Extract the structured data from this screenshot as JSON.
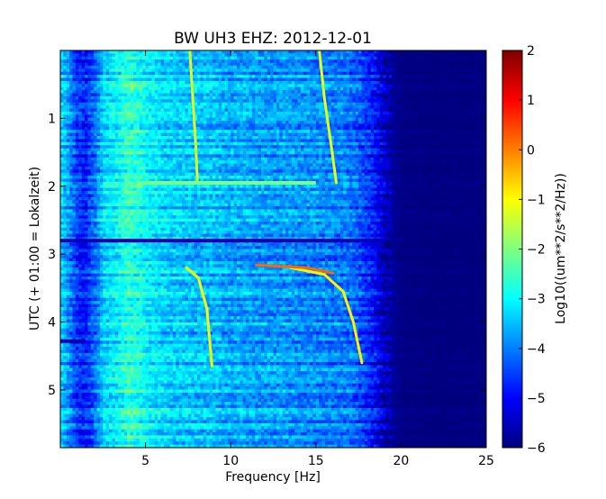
{
  "chart_data": {
    "type": "heatmap",
    "title": "BW UH3 EHZ: 2012-12-01",
    "xlabel": "Frequency [Hz]",
    "ylabel": "UTC (+ 01:00 = Lokalzeit)",
    "colorbar_label": "Log10((um**2/s**2/Hz))",
    "xlim": [
      0,
      25
    ],
    "ylim": [
      5.85,
      0
    ],
    "x_ticks": [
      5,
      10,
      15,
      20,
      25
    ],
    "y_ticks": [
      1,
      2,
      3,
      4,
      5
    ],
    "colorbar_range": [
      -6,
      2
    ],
    "colorbar_ticks": [
      2,
      1,
      0,
      -1,
      -2,
      -3,
      -4,
      -5,
      -6
    ],
    "colormap": "jet",
    "colormap_stops": [
      "#00007f",
      "#0000ff",
      "#007fff",
      "#00ffff",
      "#7fff7f",
      "#ffff00",
      "#ff7f00",
      "#ff0000",
      "#7f0000"
    ],
    "frequency_profile": {
      "x": [
        0,
        1,
        1.5,
        2,
        2.6,
        3.2,
        4,
        5,
        6,
        7,
        8,
        9,
        10,
        11,
        12,
        13,
        14,
        15,
        16,
        17,
        17.5,
        18,
        18.5,
        19,
        19.5,
        20,
        22,
        25
      ],
      "value": [
        -3.2,
        -4.6,
        -4.8,
        -4.2,
        -3.3,
        -3.1,
        -2.6,
        -3.0,
        -3.3,
        -3.4,
        -3.5,
        -3.5,
        -3.7,
        -3.7,
        -3.8,
        -3.8,
        -3.9,
        -3.9,
        -4.0,
        -4.1,
        -4.3,
        -4.6,
        -5.0,
        -5.5,
        -5.8,
        -5.95,
        -6.0,
        -6.0
      ]
    },
    "features": [
      {
        "type": "sweep",
        "points": [
          [
            7.6,
            0
          ],
          [
            7.8,
            0.8
          ],
          [
            7.95,
            1.4
          ],
          [
            8.05,
            1.95
          ]
        ],
        "value": -1.3
      },
      {
        "type": "sweep",
        "points": [
          [
            15.2,
            0
          ],
          [
            15.5,
            0.7
          ],
          [
            15.9,
            1.4
          ],
          [
            16.2,
            1.95
          ]
        ],
        "value": -1.2
      },
      {
        "type": "sweep",
        "points": [
          [
            7.4,
            3.2
          ],
          [
            8.1,
            3.35
          ],
          [
            8.6,
            3.8
          ],
          [
            8.9,
            4.65
          ]
        ],
        "value": -1.1
      },
      {
        "type": "sweep",
        "points": [
          [
            13.5,
            3.2
          ],
          [
            15.5,
            3.3
          ],
          [
            16.6,
            3.55
          ],
          [
            17.2,
            4.0
          ],
          [
            17.7,
            4.6
          ]
        ],
        "value": -0.9
      },
      {
        "type": "sweep",
        "points": [
          [
            11.5,
            3.16
          ],
          [
            14.5,
            3.2
          ],
          [
            16.0,
            3.28
          ]
        ],
        "value": 0.2
      },
      {
        "type": "band",
        "y": 2.8,
        "x": [
          0,
          19
        ],
        "value": -5.6
      },
      {
        "type": "band",
        "y": 1.95,
        "x": [
          4.5,
          15
        ],
        "value": -2.0
      },
      {
        "type": "band",
        "y": 4.28,
        "x": [
          0,
          1.5
        ],
        "value": -5.6
      }
    ]
  }
}
